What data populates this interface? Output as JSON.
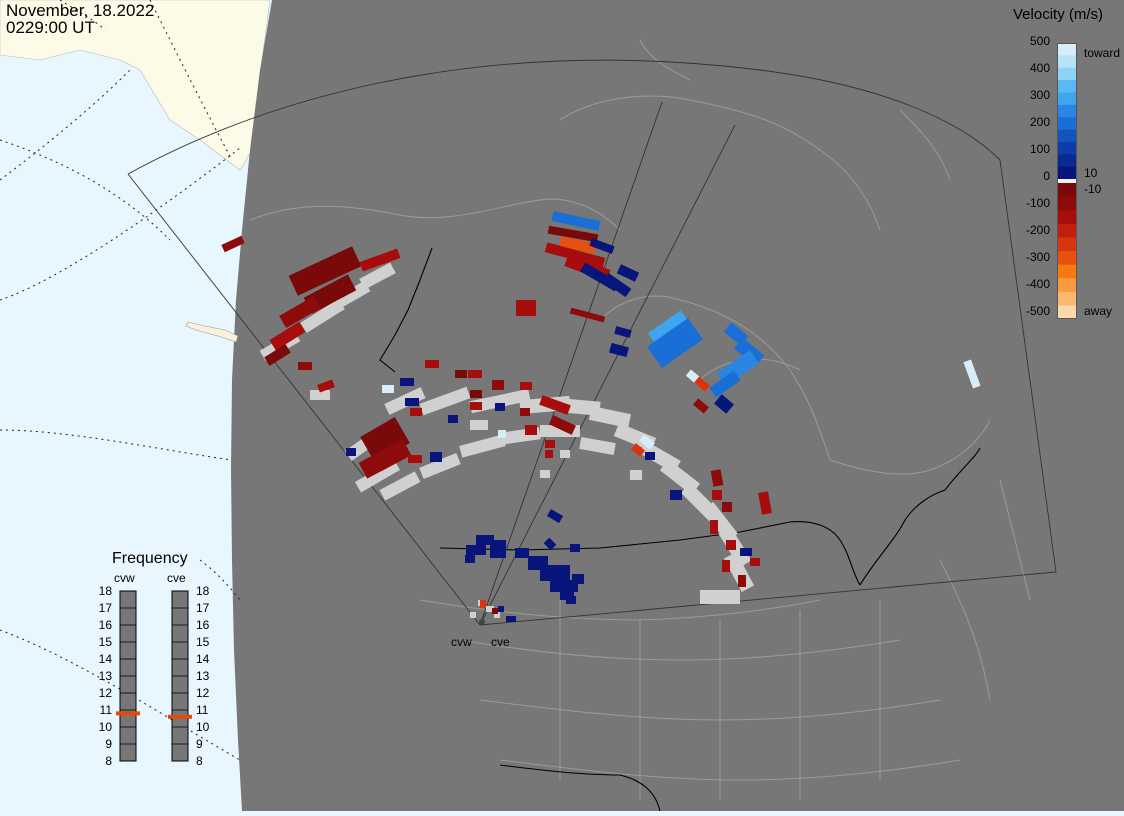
{
  "header": {
    "date": "November, 18.2022",
    "time": "0229:00 UT"
  },
  "legend": {
    "title": "Velocity (m/s)",
    "ticks": [
      "500",
      "400",
      "300",
      "200",
      "100",
      "0",
      "-100",
      "-200",
      "-300",
      "-400",
      "-500"
    ],
    "small_ticks": [
      "10",
      "-10"
    ],
    "toward_label": "toward",
    "away_label": "away",
    "colors": [
      "#d6eefc",
      "#8fd2f8",
      "#3fa6ee",
      "#1a6fd6",
      "#0d3ea8",
      "#08157a",
      "#f0f0f0",
      "#7a0a0a",
      "#a80d0d",
      "#d8340e",
      "#f57a12",
      "#fbd8a8"
    ]
  },
  "frequency": {
    "title": "Frequency",
    "radars": [
      "cvw",
      "cve"
    ],
    "ticks": [
      "18",
      "17",
      "16",
      "15",
      "14",
      "13",
      "12",
      "11",
      "10",
      "9",
      "8"
    ],
    "cvw_mhz": 10.8,
    "cve_mhz": 10.6,
    "marker_color": "#e04a0c"
  },
  "sites": {
    "cvw_label": "cvw",
    "cve_label": "cve"
  },
  "colors": {
    "land": "#777777",
    "ocean": "#e8f6ff",
    "ice": "#fbfbe8",
    "ground_scatter": "#d0d0d0"
  }
}
